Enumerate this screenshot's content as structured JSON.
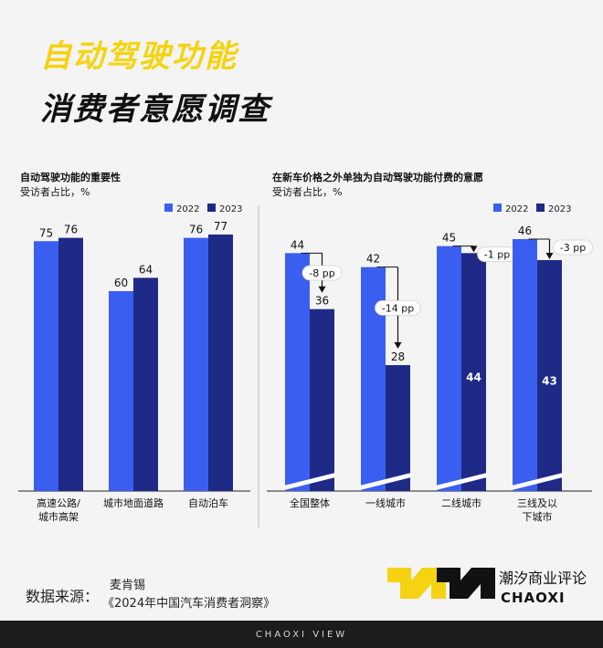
{
  "header": {
    "title_line1": "自动驾驶功能",
    "title_line2": "消费者意愿调查"
  },
  "colors": {
    "y2022": "#3a5ff0",
    "y2023": "#1e2a86",
    "accent": "#f5d312"
  },
  "left": {
    "title": "自动驾驶功能的重要性",
    "subtitle": "受访者占比，%",
    "legend": [
      "2022",
      "2023"
    ]
  },
  "right": {
    "title": "在新车价格之外单独为自动驾驶功能付费的意愿",
    "subtitle": "受访者占比，%",
    "legend": [
      "2022",
      "2023"
    ]
  },
  "chart_data": [
    {
      "type": "bar",
      "title": "自动驾驶功能的重要性",
      "ylabel": "受访者占比，%",
      "categories": [
        "高速公路/城市高架",
        "城市地面道路",
        "自动泊车"
      ],
      "category_lines": [
        [
          "高速公路/",
          "城市高架"
        ],
        [
          "城市地面道路"
        ],
        [
          "自动泊车"
        ]
      ],
      "series": [
        {
          "name": "2022",
          "values": [
            75,
            60,
            76
          ]
        },
        {
          "name": "2023",
          "values": [
            76,
            64,
            77
          ]
        }
      ],
      "ylim": [
        0,
        100
      ],
      "legend": "top-right"
    },
    {
      "type": "bar",
      "title": "在新车价格之外单独为自动驾驶功能付费的意愿",
      "ylabel": "受访者占比，%",
      "categories": [
        "全国整体",
        "一线城市",
        "二线城市",
        "三线及以下城市"
      ],
      "category_lines": [
        [
          "全国整体"
        ],
        [
          "一线城市"
        ],
        [
          "二线城市"
        ],
        [
          "三线及以",
          "下城市"
        ]
      ],
      "series": [
        {
          "name": "2022",
          "values": [
            44,
            42,
            45,
            46
          ]
        },
        {
          "name": "2023",
          "values": [
            36,
            28,
            44,
            43
          ]
        }
      ],
      "annotations": [
        "-8 pp",
        "-14 pp",
        "-1 pp",
        "-3 pp"
      ],
      "axis_break": true,
      "legend": "top-right"
    }
  ],
  "source": {
    "label": "数据来源：",
    "name": "麦肯锡",
    "report": "《2024年中国汽车消费者洞察》"
  },
  "brand": {
    "cn": "潮汐商业评论",
    "en": "CHAOXI",
    "footer": "CHAOXI VIEW"
  }
}
